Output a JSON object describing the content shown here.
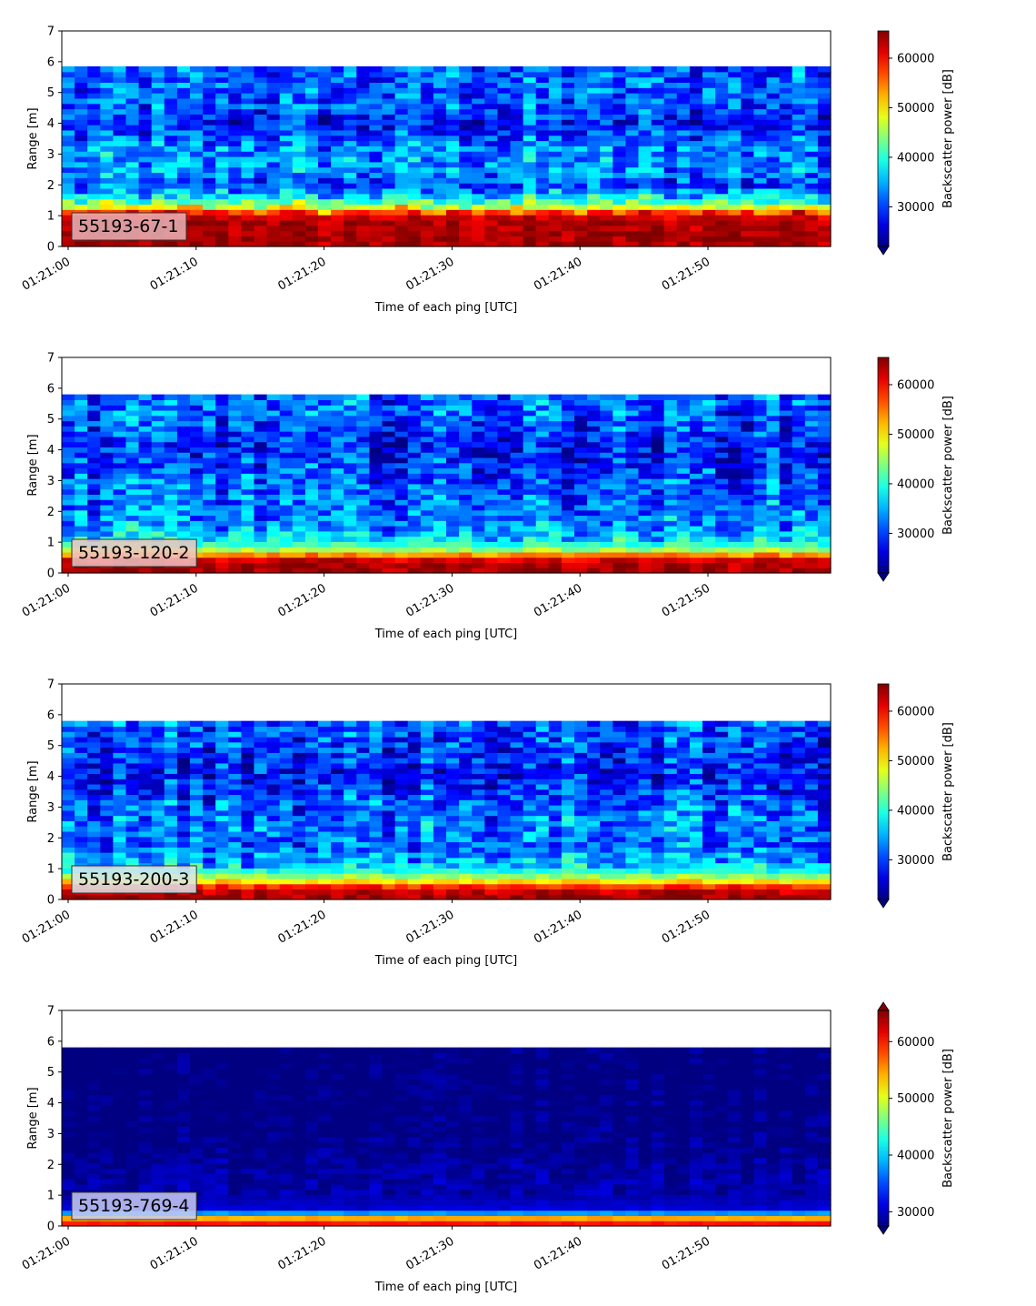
{
  "chart_data": [
    {
      "type": "heatmap",
      "label": "55193-67-1",
      "xlabel": "Time of each ping [UTC]",
      "ylabel": "Range [m]",
      "colorbar_label": "Backscatter power [dB]",
      "x_ticks": [
        "01:21:00",
        "01:21:10",
        "01:21:20",
        "01:21:30",
        "01:21:40",
        "01:21:50"
      ],
      "y_ticks": [
        "0",
        "1",
        "2",
        "3",
        "4",
        "5",
        "6",
        "7"
      ],
      "ylim": [
        0,
        7
      ],
      "x_range_s": [
        0,
        59.5
      ],
      "data_range_max_m": 5.85,
      "colorbar_ticks": [
        "30000",
        "40000",
        "50000",
        "60000"
      ],
      "clim": [
        22000,
        65500
      ],
      "colorbar_extend": "min",
      "label_box_color": "#e8b4b8",
      "profile": [
        {
          "range_m": 0.2,
          "value": 64000
        },
        {
          "range_m": 0.9,
          "value": 63500
        },
        {
          "range_m": 1.1,
          "value": 58000
        },
        {
          "range_m": 1.3,
          "value": 47000
        },
        {
          "range_m": 1.6,
          "value": 38000
        },
        {
          "range_m": 2.0,
          "value": 30000
        },
        {
          "range_m": 2.6,
          "value": 34000
        },
        {
          "range_m": 3.2,
          "value": 33000
        },
        {
          "range_m": 4.0,
          "value": 28000
        },
        {
          "range_m": 4.6,
          "value": 31000
        },
        {
          "range_m": 5.85,
          "value": 31000
        }
      ],
      "noise_amplitude": 6500
    },
    {
      "type": "heatmap",
      "label": "55193-120-2",
      "xlabel": "Time of each ping [UTC]",
      "ylabel": "Range [m]",
      "colorbar_label": "Backscatter power [dB]",
      "x_ticks": [
        "01:21:00",
        "01:21:10",
        "01:21:20",
        "01:21:30",
        "01:21:40",
        "01:21:50"
      ],
      "y_ticks": [
        "0",
        "1",
        "2",
        "3",
        "4",
        "5",
        "6",
        "7"
      ],
      "ylim": [
        0,
        7
      ],
      "x_range_s": [
        0,
        59.5
      ],
      "data_range_max_m": 5.8,
      "colorbar_ticks": [
        "30000",
        "40000",
        "50000",
        "60000"
      ],
      "clim": [
        22000,
        65500
      ],
      "colorbar_extend": "min",
      "label_box_color": "#eec4c4",
      "profile": [
        {
          "range_m": 0.1,
          "value": 64000
        },
        {
          "range_m": 0.4,
          "value": 63000
        },
        {
          "range_m": 0.6,
          "value": 54000
        },
        {
          "range_m": 0.8,
          "value": 43000
        },
        {
          "range_m": 1.1,
          "value": 37000
        },
        {
          "range_m": 1.6,
          "value": 33000
        },
        {
          "range_m": 2.2,
          "value": 32000
        },
        {
          "range_m": 3.0,
          "value": 31000
        },
        {
          "range_m": 4.0,
          "value": 28000
        },
        {
          "range_m": 5.0,
          "value": 31000
        },
        {
          "range_m": 5.8,
          "value": 32000
        }
      ],
      "noise_amplitude": 6500
    },
    {
      "type": "heatmap",
      "label": "55193-200-3",
      "xlabel": "Time of each ping [UTC]",
      "ylabel": "Range [m]",
      "colorbar_label": "Backscatter power [dB]",
      "x_ticks": [
        "01:21:00",
        "01:21:10",
        "01:21:20",
        "01:21:30",
        "01:21:40",
        "01:21:50"
      ],
      "y_ticks": [
        "0",
        "1",
        "2",
        "3",
        "4",
        "5",
        "6",
        "7"
      ],
      "ylim": [
        0,
        7
      ],
      "x_range_s": [
        0,
        59.5
      ],
      "data_range_max_m": 5.8,
      "colorbar_ticks": [
        "30000",
        "40000",
        "50000",
        "60000"
      ],
      "clim": [
        22000,
        65500
      ],
      "colorbar_extend": "min",
      "label_box_color": "#d9e4ea",
      "profile": [
        {
          "range_m": 0.1,
          "value": 64000
        },
        {
          "range_m": 0.35,
          "value": 62000
        },
        {
          "range_m": 0.6,
          "value": 50000
        },
        {
          "range_m": 0.9,
          "value": 40000
        },
        {
          "range_m": 1.2,
          "value": 35000
        },
        {
          "range_m": 1.8,
          "value": 32000
        },
        {
          "range_m": 2.4,
          "value": 33000
        },
        {
          "range_m": 3.2,
          "value": 31000
        },
        {
          "range_m": 4.0,
          "value": 28000
        },
        {
          "range_m": 5.0,
          "value": 30000
        },
        {
          "range_m": 5.8,
          "value": 31000
        }
      ],
      "noise_amplitude": 6500
    },
    {
      "type": "heatmap",
      "label": "55193-769-4",
      "xlabel": "Time of each ping [UTC]",
      "ylabel": "Range [m]",
      "colorbar_label": "Backscatter power [dB]",
      "x_ticks": [
        "01:21:00",
        "01:21:10",
        "01:21:20",
        "01:21:30",
        "01:21:40",
        "01:21:50"
      ],
      "y_ticks": [
        "0",
        "1",
        "2",
        "3",
        "4",
        "5",
        "6",
        "7"
      ],
      "ylim": [
        0,
        7
      ],
      "x_range_s": [
        0,
        59.5
      ],
      "data_range_max_m": 5.8,
      "colorbar_ticks": [
        "30000",
        "40000",
        "50000",
        "60000"
      ],
      "clim": [
        27500,
        65500
      ],
      "colorbar_extend": "both",
      "label_box_color": "#c9ccf2",
      "profile": [
        {
          "range_m": 0.05,
          "value": 60000
        },
        {
          "range_m": 0.2,
          "value": 60000
        },
        {
          "range_m": 0.35,
          "value": 45000
        },
        {
          "range_m": 0.5,
          "value": 31000
        },
        {
          "range_m": 1.0,
          "value": 29000
        },
        {
          "range_m": 2.0,
          "value": 28500
        },
        {
          "range_m": 3.0,
          "value": 27500
        },
        {
          "range_m": 5.8,
          "value": 27000
        }
      ],
      "noise_amplitude": 2000
    }
  ]
}
